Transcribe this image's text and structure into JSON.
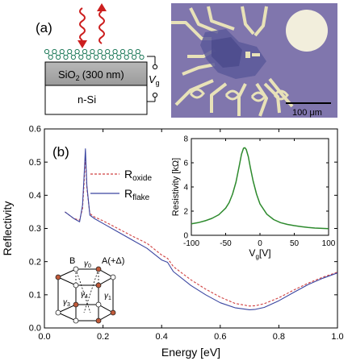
{
  "panel_a": {
    "label": "(a)",
    "oxide_label": "SiO",
    "oxide_sub": "2",
    "oxide_thickness": "(300 nm)",
    "substrate_label": "n-Si",
    "gate_label": "V",
    "gate_sub": "g",
    "scalebar_label": "100 μm"
  },
  "panel_b": {
    "label": "(b)",
    "legend": {
      "r_label": "R",
      "oxide_sub": "oxide",
      "flake_sub": "flake"
    },
    "lattice_labels": {
      "b": "B",
      "a": "A(+Δ)",
      "g0": "γ",
      "g0_sub": "0",
      "g1": "γ",
      "g1_sub": "1",
      "g3": "γ",
      "g3_sub": "3",
      "g4": "γ",
      "g4_sub": "4"
    }
  },
  "chart_data": [
    {
      "type": "line",
      "title": "",
      "xlabel": "Energy [eV]",
      "ylabel": "Reflectivity",
      "xlim": [
        0.0,
        1.0
      ],
      "ylim": [
        0.0,
        0.6
      ],
      "xticks": [
        "0.0",
        "0.2",
        "0.4",
        "0.6",
        "0.8",
        "1.0"
      ],
      "yticks": [
        "0.0",
        "0.1",
        "0.2",
        "0.3",
        "0.4",
        "0.5",
        "0.6"
      ],
      "grid": false,
      "legend_position": "top-center",
      "series": [
        {
          "name": "R_oxide",
          "style": "dashed",
          "color": "#d04040",
          "x": [
            0.07,
            0.1,
            0.12,
            0.13,
            0.135,
            0.14,
            0.145,
            0.155,
            0.17,
            0.2,
            0.25,
            0.3,
            0.35,
            0.4,
            0.42,
            0.44,
            0.5,
            0.55,
            0.6,
            0.65,
            0.7,
            0.72,
            0.75,
            0.8,
            0.85,
            0.9,
            0.95,
            1.0
          ],
          "y": [
            0.35,
            0.33,
            0.325,
            0.36,
            0.43,
            0.52,
            0.42,
            0.345,
            0.335,
            0.323,
            0.3,
            0.277,
            0.255,
            0.22,
            0.21,
            0.185,
            0.145,
            0.117,
            0.093,
            0.074,
            0.066,
            0.067,
            0.073,
            0.091,
            0.114,
            0.135,
            0.153,
            0.168
          ]
        },
        {
          "name": "R_flake",
          "style": "solid",
          "color": "#3a45a0",
          "x": [
            0.07,
            0.1,
            0.12,
            0.13,
            0.135,
            0.14,
            0.145,
            0.155,
            0.17,
            0.2,
            0.25,
            0.3,
            0.35,
            0.4,
            0.42,
            0.44,
            0.5,
            0.55,
            0.6,
            0.65,
            0.7,
            0.72,
            0.75,
            0.8,
            0.85,
            0.9,
            0.95,
            1.0
          ],
          "y": [
            0.35,
            0.33,
            0.32,
            0.37,
            0.45,
            0.54,
            0.43,
            0.34,
            0.33,
            0.315,
            0.29,
            0.265,
            0.24,
            0.205,
            0.198,
            0.17,
            0.128,
            0.1,
            0.076,
            0.061,
            0.055,
            0.056,
            0.062,
            0.082,
            0.107,
            0.131,
            0.15,
            0.166
          ]
        }
      ]
    },
    {
      "type": "line",
      "title": "",
      "xlabel": "V",
      "xlabel_sub": "g",
      "xlabel_unit": "[V]",
      "ylabel": "Resistivity [kΩ]",
      "xlim": [
        -100,
        100
      ],
      "ylim": [
        0,
        8
      ],
      "xticks": [
        "-100",
        "-50",
        "0",
        "50",
        "100"
      ],
      "yticks": [
        "0",
        "2",
        "4",
        "6",
        "8"
      ],
      "grid": false,
      "series": [
        {
          "name": "",
          "color": "#2d8a2d",
          "x": [
            -100,
            -90,
            -80,
            -70,
            -60,
            -50,
            -45,
            -40,
            -35,
            -30,
            -27,
            -24,
            -22,
            -20,
            -17,
            -14,
            -10,
            -5,
            0,
            10,
            20,
            30,
            40,
            50,
            60,
            70,
            80,
            90,
            100
          ],
          "y": [
            0.95,
            1.05,
            1.2,
            1.4,
            1.7,
            2.25,
            2.7,
            3.4,
            4.4,
            5.8,
            6.7,
            7.2,
            7.25,
            7.1,
            6.5,
            5.6,
            4.5,
            3.4,
            2.6,
            1.75,
            1.3,
            1.05,
            0.9,
            0.8,
            0.72,
            0.65,
            0.6,
            0.57,
            0.55
          ]
        }
      ]
    }
  ]
}
